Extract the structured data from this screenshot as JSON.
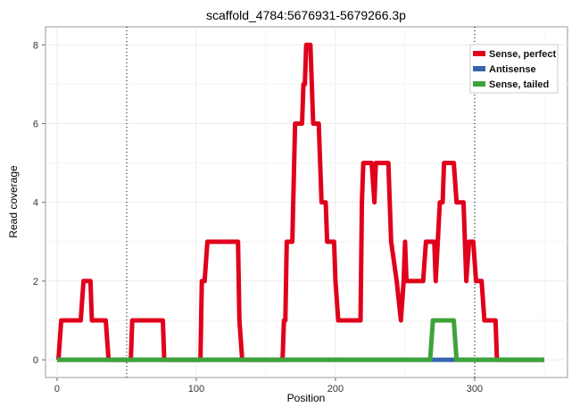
{
  "chart_data": {
    "type": "line",
    "title": "scaffold_4784:5676931-5679266.3p",
    "xlabel": "Position",
    "ylabel": "Read coverage",
    "xlim": [
      -8.3,
      366.7
    ],
    "ylim": [
      -0.45,
      8.46
    ],
    "xticks": [
      0,
      100,
      200,
      300
    ],
    "yticks": [
      0,
      2,
      4,
      6,
      8
    ],
    "grid": true,
    "vlines": [
      50,
      300
    ],
    "legend_position": "top-right",
    "series": [
      {
        "name": "Sense, perfect",
        "color": "#e0001b",
        "x": [
          0,
          1,
          3,
          17,
          19,
          24,
          25,
          35,
          37,
          53,
          54,
          76,
          77,
          103,
          104,
          106,
          108,
          130,
          131,
          133,
          162,
          163,
          164,
          165,
          169,
          171,
          176,
          177,
          178,
          179,
          182,
          184,
          188,
          190,
          193,
          194,
          199,
          200,
          202,
          218,
          219,
          220,
          226,
          228,
          229,
          238,
          240,
          244,
          247,
          249,
          250,
          251,
          263,
          265,
          271,
          272,
          275,
          277,
          278,
          285,
          287,
          292,
          294,
          296,
          299,
          301,
          305,
          307,
          315,
          316,
          350
        ],
        "y": [
          0,
          0,
          1,
          1,
          2,
          2,
          1,
          1,
          0,
          0,
          1,
          1,
          0,
          0,
          2,
          2,
          3,
          3,
          1,
          0,
          0,
          1,
          1,
          3,
          3,
          6,
          6,
          7,
          7,
          8,
          8,
          6,
          6,
          4,
          4,
          3,
          3,
          2,
          1,
          1,
          4,
          5,
          5,
          4,
          5,
          5,
          3,
          2,
          1,
          2,
          3,
          2,
          2,
          3,
          3,
          2,
          4,
          4,
          5,
          5,
          4,
          4,
          2,
          3,
          3,
          2,
          2,
          1,
          1,
          0,
          0
        ]
      },
      {
        "name": "Antisense",
        "color": "#3366aa",
        "x": [
          0,
          350
        ],
        "y": [
          0,
          0
        ]
      },
      {
        "name": "Sense, tailed",
        "color": "#3ea33a",
        "x": [
          0,
          268,
          270,
          285,
          287,
          350
        ],
        "y": [
          0,
          0,
          1,
          1,
          0,
          0
        ]
      }
    ]
  }
}
